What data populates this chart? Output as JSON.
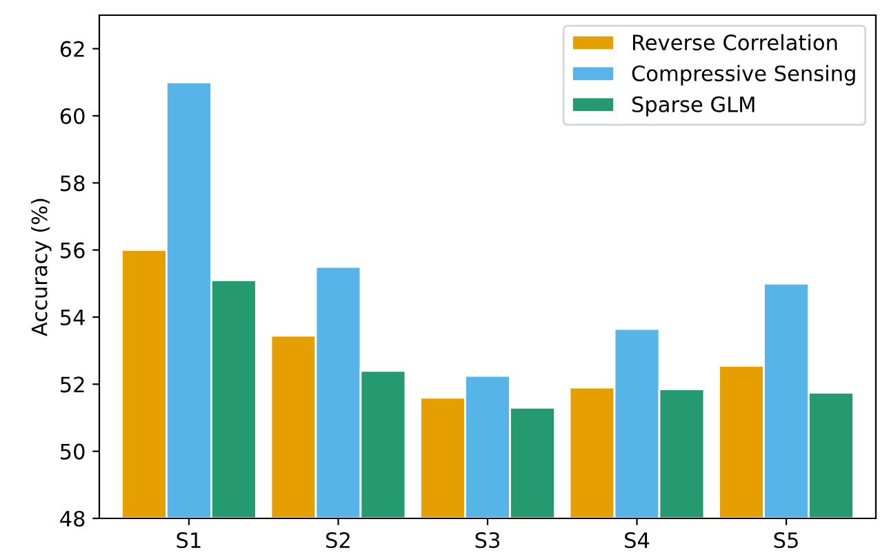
{
  "chart_data": {
    "type": "bar",
    "ylabel": "Accuracy (%)",
    "categories": [
      "S1",
      "S2",
      "S3",
      "S4",
      "S5"
    ],
    "series": [
      {
        "name": "Reverse Correlation",
        "color": "#e69f00",
        "values": [
          56.0,
          53.45,
          51.6,
          51.9,
          52.55
        ]
      },
      {
        "name": "Compressive Sensing",
        "color": "#56b4e9",
        "values": [
          61.0,
          55.5,
          52.25,
          53.65,
          55.0
        ]
      },
      {
        "name": "Sparse GLM",
        "color": "#259a70",
        "values": [
          55.1,
          52.4,
          51.3,
          51.85,
          51.75
        ]
      }
    ],
    "ylim": [
      48,
      63
    ],
    "yticks": [
      48,
      50,
      52,
      54,
      56,
      58,
      60,
      62
    ],
    "grid": false,
    "legend": "top right"
  }
}
